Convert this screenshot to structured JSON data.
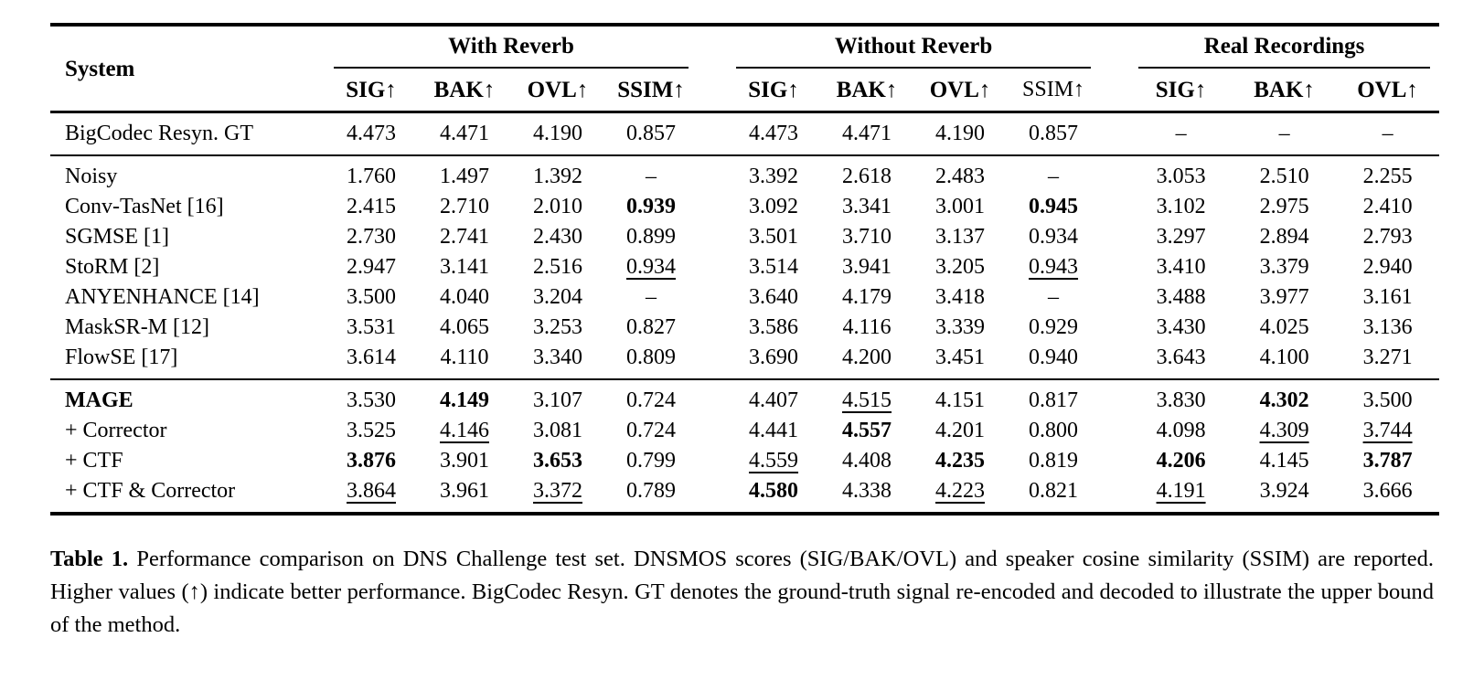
{
  "colors": {
    "text": "#000000",
    "background": "#ffffff",
    "rule": "#000000"
  },
  "table": {
    "system_header": "System",
    "groups": [
      {
        "label": "With Reverb",
        "columns": [
          {
            "label": "SIG↑",
            "bold": true
          },
          {
            "label": "BAK↑",
            "bold": true
          },
          {
            "label": "OVL↑",
            "bold": true
          },
          {
            "label": "SSIM↑",
            "bold": true
          }
        ]
      },
      {
        "label": "Without Reverb",
        "columns": [
          {
            "label": "SIG↑",
            "bold": true
          },
          {
            "label": "BAK↑",
            "bold": true
          },
          {
            "label": "OVL↑",
            "bold": true
          },
          {
            "label": "SSIM↑",
            "bold": false
          }
        ]
      },
      {
        "label": "Real Recordings",
        "columns": [
          {
            "label": "SIG↑",
            "bold": true
          },
          {
            "label": "BAK↑",
            "bold": true
          },
          {
            "label": "OVL↑",
            "bold": true
          }
        ]
      }
    ],
    "sections": [
      {
        "rows": [
          {
            "system": "BigCodec Resyn. GT",
            "values": [
              [
                "4.473",
                "4.471",
                "4.190",
                "0.857"
              ],
              [
                "4.473",
                "4.471",
                "4.190",
                "0.857"
              ],
              [
                "–",
                "–",
                "–"
              ]
            ]
          }
        ]
      },
      {
        "rows": [
          {
            "system": "Noisy",
            "values": [
              [
                "1.760",
                "1.497",
                "1.392",
                "–"
              ],
              [
                "3.392",
                "2.618",
                "2.483",
                "–"
              ],
              [
                "3.053",
                "2.510",
                "2.255"
              ]
            ]
          },
          {
            "system": "Conv-TasNet [16]",
            "values": [
              [
                "2.415",
                "2.710",
                "2.010",
                {
                  "v": "0.939",
                  "b": true
                }
              ],
              [
                "3.092",
                "3.341",
                "3.001",
                {
                  "v": "0.945",
                  "b": true
                }
              ],
              [
                "3.102",
                "2.975",
                "2.410"
              ]
            ]
          },
          {
            "system": "SGMSE [1]",
            "values": [
              [
                "2.730",
                "2.741",
                "2.430",
                "0.899"
              ],
              [
                "3.501",
                "3.710",
                "3.137",
                "0.934"
              ],
              [
                "3.297",
                "2.894",
                "2.793"
              ]
            ]
          },
          {
            "system": "StoRM [2]",
            "values": [
              [
                "2.947",
                "3.141",
                "2.516",
                {
                  "v": "0.934",
                  "u": true
                }
              ],
              [
                "3.514",
                "3.941",
                "3.205",
                {
                  "v": "0.943",
                  "u": true
                }
              ],
              [
                "3.410",
                "3.379",
                "2.940"
              ]
            ]
          },
          {
            "system": "ANYENHANCE [14]",
            "values": [
              [
                "3.500",
                "4.040",
                "3.204",
                "–"
              ],
              [
                "3.640",
                "4.179",
                "3.418",
                "–"
              ],
              [
                "3.488",
                "3.977",
                "3.161"
              ]
            ]
          },
          {
            "system": "MaskSR-M [12]",
            "values": [
              [
                "3.531",
                "4.065",
                "3.253",
                "0.827"
              ],
              [
                "3.586",
                "4.116",
                "3.339",
                "0.929"
              ],
              [
                "3.430",
                "4.025",
                "3.136"
              ]
            ]
          },
          {
            "system": "FlowSE [17]",
            "values": [
              [
                "3.614",
                "4.110",
                "3.340",
                "0.809"
              ],
              [
                "3.690",
                "4.200",
                "3.451",
                "0.940"
              ],
              [
                "3.643",
                "4.100",
                "3.271"
              ]
            ]
          }
        ]
      },
      {
        "rows": [
          {
            "system": {
              "text": "MAGE",
              "bold": true
            },
            "values": [
              [
                "3.530",
                {
                  "v": "4.149",
                  "b": true
                },
                "3.107",
                "0.724"
              ],
              [
                "4.407",
                {
                  "v": "4.515",
                  "u": true
                },
                "4.151",
                "0.817"
              ],
              [
                "3.830",
                {
                  "v": "4.302",
                  "b": true
                },
                "3.500"
              ]
            ]
          },
          {
            "system": "+ Corrector",
            "values": [
              [
                "3.525",
                {
                  "v": "4.146",
                  "u": true
                },
                "3.081",
                "0.724"
              ],
              [
                "4.441",
                {
                  "v": "4.557",
                  "b": true
                },
                "4.201",
                "0.800"
              ],
              [
                "4.098",
                {
                  "v": "4.309",
                  "u": true
                },
                {
                  "v": "3.744",
                  "u": true
                }
              ]
            ]
          },
          {
            "system": "+ CTF",
            "values": [
              [
                {
                  "v": "3.876",
                  "b": true
                },
                "3.901",
                {
                  "v": "3.653",
                  "b": true
                },
                "0.799"
              ],
              [
                {
                  "v": "4.559",
                  "u": true
                },
                "4.408",
                {
                  "v": "4.235",
                  "b": true
                },
                "0.819"
              ],
              [
                {
                  "v": "4.206",
                  "b": true
                },
                "4.145",
                {
                  "v": "3.787",
                  "b": true
                }
              ]
            ]
          },
          {
            "system": "+ CTF & Corrector",
            "values": [
              [
                {
                  "v": "3.864",
                  "u": true
                },
                "3.961",
                {
                  "v": "3.372",
                  "u": true
                },
                "0.789"
              ],
              [
                {
                  "v": "4.580",
                  "b": true
                },
                "4.338",
                {
                  "v": "4.223",
                  "u": true
                },
                "0.821"
              ],
              [
                {
                  "v": "4.191",
                  "u": true
                },
                "3.924",
                "3.666"
              ]
            ]
          }
        ]
      }
    ]
  },
  "caption": {
    "label": "Table 1.",
    "text": " Performance comparison on DNS Challenge test set. DNSMOS scores (SIG/BAK/OVL) and speaker cosine similarity (SSIM) are reported.  Higher values (↑) indicate better performance.  BigCodec Resyn.  GT denotes the ground-truth signal re-encoded and decoded to illustrate the upper bound of the method."
  }
}
